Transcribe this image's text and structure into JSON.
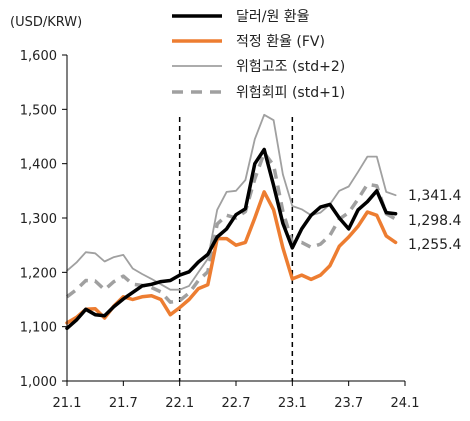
{
  "chart_data": {
    "type": "line",
    "unit_label": "(USD/KRW)",
    "x_ticks": [
      "21.1",
      "21.7",
      "22.1",
      "22.7",
      "23.1",
      "23.7",
      "24.1"
    ],
    "y_ticks": [
      "1,000",
      "1,100",
      "1,200",
      "1,300",
      "1,400",
      "1,500",
      "1,600"
    ],
    "ylim": [
      1000,
      1600
    ],
    "x_start": "2021-01",
    "x_end": "2024-01",
    "vlines": [
      "22.1",
      "23.1"
    ],
    "grid": false,
    "legend_position": "top-right",
    "x": [
      "21.1",
      "21.2",
      "21.3",
      "21.4",
      "21.5",
      "21.6",
      "21.7",
      "21.8",
      "21.9",
      "21.10",
      "21.11",
      "21.12",
      "22.1",
      "22.2",
      "22.3",
      "22.4",
      "22.5",
      "22.6",
      "22.7",
      "22.8",
      "22.9",
      "22.10",
      "22.11",
      "22.12",
      "23.1",
      "23.2",
      "23.3",
      "23.4",
      "23.5",
      "23.6",
      "23.7",
      "23.8",
      "23.9",
      "23.10",
      "23.11",
      "23.12"
    ],
    "series": [
      {
        "name": "달러/원 환율",
        "color": "#000000",
        "style": "solid",
        "width": 3.5,
        "values": [
          1097,
          1112,
          1132,
          1122,
          1120,
          1137,
          1151,
          1163,
          1175,
          1178,
          1183,
          1185,
          1195,
          1201,
          1219,
          1233,
          1265,
          1280,
          1306,
          1317,
          1400,
          1426,
          1360,
          1290,
          1245,
          1280,
          1305,
          1320,
          1325,
          1300,
          1280,
          1315,
          1330,
          1350,
          1310,
          1308
        ]
      },
      {
        "name": "적정 환율 (FV)",
        "color": "#ED7D31",
        "style": "solid",
        "width": 3.5,
        "values": [
          1107,
          1117,
          1132,
          1133,
          1116,
          1138,
          1155,
          1150,
          1155,
          1157,
          1150,
          1122,
          1135,
          1150,
          1170,
          1177,
          1262,
          1262,
          1250,
          1255,
          1300,
          1348,
          1315,
          1245,
          1188,
          1195,
          1187,
          1195,
          1212,
          1248,
          1265,
          1285,
          1311,
          1305,
          1267,
          1255
        ]
      },
      {
        "name": "위험고조 (std+2)",
        "color": "#A0A0A0",
        "style": "solid",
        "width": 1.8,
        "values": [
          1203,
          1218,
          1237,
          1235,
          1220,
          1228,
          1232,
          1207,
          1197,
          1188,
          1178,
          1168,
          1168,
          1175,
          1200,
          1225,
          1315,
          1348,
          1350,
          1370,
          1445,
          1490,
          1480,
          1380,
          1322,
          1316,
          1305,
          1310,
          1325,
          1350,
          1358,
          1385,
          1413,
          1413,
          1348,
          1342
        ]
      },
      {
        "name": "위험회피 (std+1)",
        "color": "#A0A0A0",
        "style": "dashed",
        "width": 3.5,
        "values": [
          1155,
          1168,
          1185,
          1184,
          1168,
          1183,
          1193,
          1178,
          1176,
          1172,
          1164,
          1145,
          1148,
          1162,
          1185,
          1201,
          1289,
          1305,
          1300,
          1312,
          1372,
          1420,
          1397,
          1312,
          1255,
          1255,
          1246,
          1252,
          1268,
          1298,
          1310,
          1335,
          1362,
          1359,
          1308,
          1298
        ]
      }
    ],
    "end_labels": [
      "1,341.4",
      "1,298.4",
      "1,255.4"
    ]
  }
}
